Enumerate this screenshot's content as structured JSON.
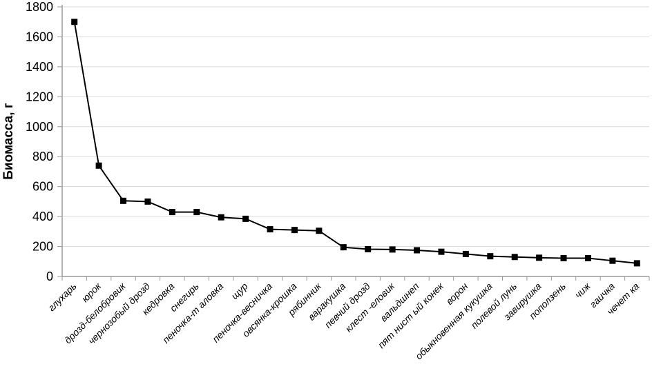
{
  "chart_data": {
    "type": "line",
    "title": "",
    "xlabel": "",
    "ylabel": "Биомасса,  г",
    "ylim": [
      0,
      1800
    ],
    "ytick_step": 200,
    "grid": "horizontal",
    "legend": "none",
    "marker": "filled-square",
    "series_name": "биомасса",
    "categories": [
      "глухарь",
      "юрок",
      "дрозд-белобровик",
      "чернозобый дрозд",
      "кедровка",
      "снегирь",
      "пеночка-т аловка",
      "щур",
      "пеночка-весничка",
      "овсянка-крошка",
      "рябинник",
      "варакушка",
      "певчий дрозд",
      "клест -еловик",
      "вальдшнеп",
      "пят нист ый конек",
      "ворон",
      "обыкновенная кукушка",
      "полевой лунь",
      "завирушка",
      "поползень",
      "чиж",
      "гаичка",
      "чечет ка"
    ],
    "values": [
      1700,
      740,
      505,
      500,
      430,
      430,
      395,
      385,
      315,
      310,
      305,
      195,
      182,
      180,
      175,
      165,
      150,
      135,
      130,
      125,
      122,
      122,
      105,
      88
    ],
    "ytick_labels": [
      "0",
      "200",
      "400",
      "600",
      "800",
      "1000",
      "1200",
      "1400",
      "1600",
      "1800"
    ]
  },
  "colors": {
    "background": "#ffffff",
    "axis": "#9a9a9a",
    "gridline": "#dcdcdc",
    "line": "#000000",
    "marker": "#000000",
    "text": "#000000"
  }
}
